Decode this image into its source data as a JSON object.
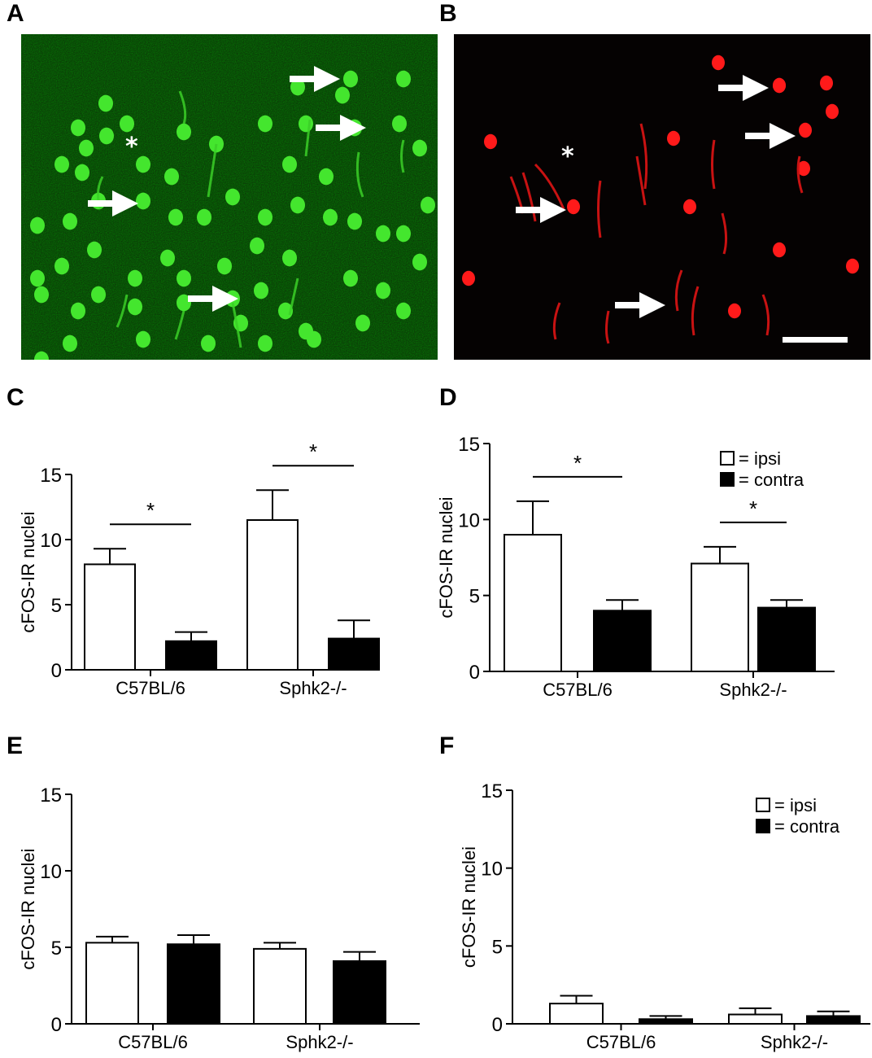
{
  "panels": {
    "a": {
      "letter": "A",
      "image": "green-fluorescence-micrograph",
      "color": "#39d62a"
    },
    "b": {
      "letter": "B",
      "image": "red-fluorescence-micrograph",
      "color": "#ff1a1a"
    },
    "c": {
      "letter": "C"
    },
    "d": {
      "letter": "D"
    },
    "e": {
      "letter": "E"
    },
    "f": {
      "letter": "F"
    }
  },
  "legend": {
    "ipsi": "= ipsi",
    "contra": "= contra"
  },
  "chart_data": [
    {
      "panel": "C",
      "type": "bar",
      "categories": [
        "C57BL/6",
        "Sphk2-/-"
      ],
      "series": [
        {
          "key": "ipsi",
          "fill": "#ffffff",
          "values": [
            8.1,
            11.5
          ],
          "errors": [
            1.2,
            2.3
          ]
        },
        {
          "key": "contra",
          "fill": "#000000",
          "values": [
            2.2,
            2.4
          ],
          "errors": [
            0.7,
            1.4
          ]
        }
      ],
      "ylabel": "cFOS-IR nuclei",
      "ylim": [
        0,
        15
      ],
      "yticks": [
        0,
        5,
        10,
        15
      ],
      "significance": [
        "*",
        "*"
      ],
      "legend": false
    },
    {
      "panel": "D",
      "type": "bar",
      "categories": [
        "C57BL/6",
        "Sphk2-/-"
      ],
      "series": [
        {
          "key": "ipsi",
          "fill": "#ffffff",
          "values": [
            9.0,
            7.1
          ],
          "errors": [
            2.2,
            1.1
          ]
        },
        {
          "key": "contra",
          "fill": "#000000",
          "values": [
            4.0,
            4.2
          ],
          "errors": [
            0.7,
            0.5
          ]
        }
      ],
      "ylabel": "cFOS-IR nuclei",
      "ylim": [
        0,
        15
      ],
      "yticks": [
        0,
        5,
        10,
        15
      ],
      "significance": [
        "*",
        "*"
      ],
      "legend": true
    },
    {
      "panel": "E",
      "type": "bar",
      "categories": [
        "C57BL/6",
        "Sphk2-/-"
      ],
      "series": [
        {
          "key": "ipsi",
          "fill": "#ffffff",
          "values": [
            5.3,
            4.9
          ],
          "errors": [
            0.4,
            0.4
          ]
        },
        {
          "key": "contra",
          "fill": "#000000",
          "values": [
            5.2,
            4.1
          ],
          "errors": [
            0.6,
            0.6
          ]
        }
      ],
      "ylabel": "cFOS-IR nuclei",
      "ylim": [
        0,
        15
      ],
      "yticks": [
        0,
        5,
        10,
        15
      ],
      "significance": [],
      "legend": false
    },
    {
      "panel": "F",
      "type": "bar",
      "categories": [
        "C57BL/6",
        "Sphk2-/-"
      ],
      "series": [
        {
          "key": "ipsi",
          "fill": "#ffffff",
          "values": [
            1.3,
            0.6
          ],
          "errors": [
            0.5,
            0.4
          ]
        },
        {
          "key": "contra",
          "fill": "#000000",
          "values": [
            0.3,
            0.5
          ],
          "errors": [
            0.2,
            0.3
          ]
        }
      ],
      "ylabel": "cFOS-IR nuclei",
      "ylim": [
        0,
        15
      ],
      "yticks": [
        0,
        5,
        10,
        15
      ],
      "significance": [],
      "legend": true
    }
  ]
}
